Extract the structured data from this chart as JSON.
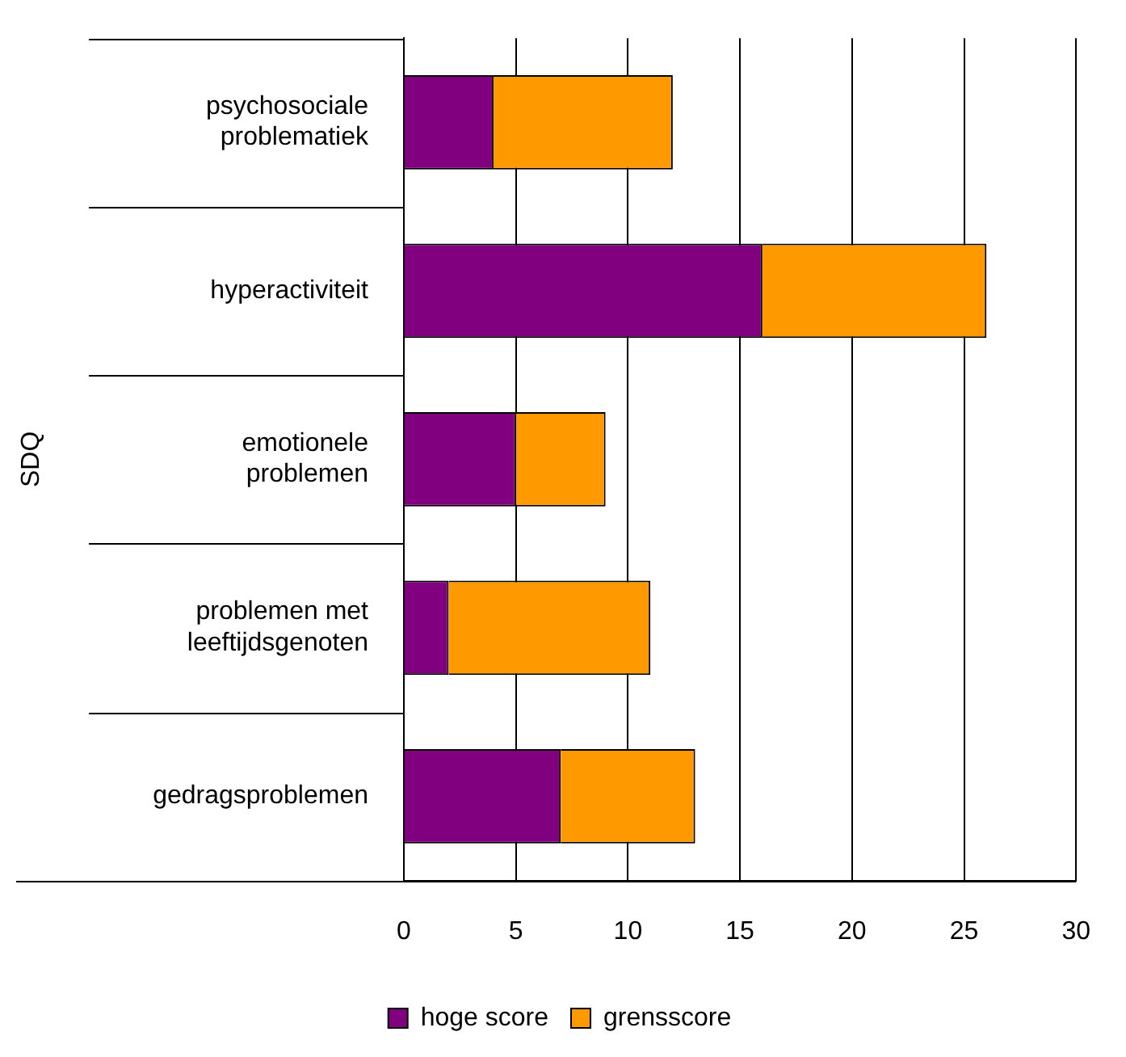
{
  "chart_data": {
    "type": "bar",
    "orientation": "horizontal",
    "stacked": true,
    "ylabel": "SDQ",
    "categories": [
      "psychosociale problematiek",
      "hyperactiviteit",
      "emotionele problemen",
      "problemen met leeftijdsgenoten",
      "gedragsproblemen"
    ],
    "series": [
      {
        "name": "hoge score",
        "color": "#800080",
        "values": [
          4,
          16,
          5,
          2,
          7
        ]
      },
      {
        "name": "grensscore",
        "color": "#ff9900",
        "values": [
          8,
          10,
          4,
          9,
          6
        ]
      }
    ],
    "xlim": [
      0,
      30
    ],
    "xticks": [
      0,
      5,
      10,
      15,
      20,
      25,
      30
    ],
    "grid": "x",
    "legend": "bottom"
  }
}
